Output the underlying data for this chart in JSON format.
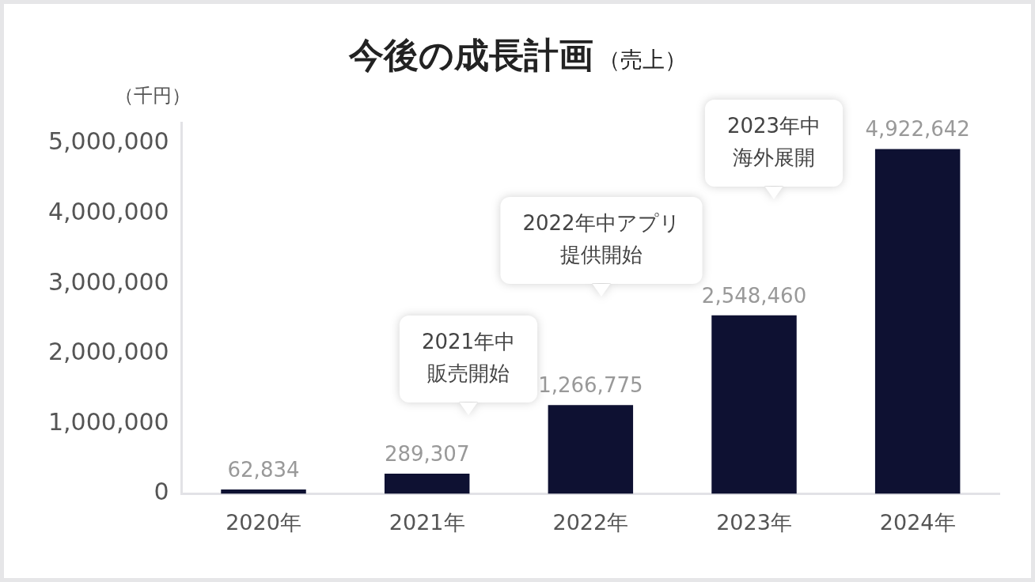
{
  "chart_data": {
    "type": "bar",
    "title": "今後の成長計画",
    "subtitle": "（売上）",
    "ylabel": "（千円）",
    "categories": [
      "2020年",
      "2021年",
      "2022年",
      "2023年",
      "2024年"
    ],
    "values": [
      62834,
      289307,
      1266775,
      2548460,
      4922642
    ],
    "color": "#0e1132",
    "value_labels": [
      "62,834",
      "289,307",
      "1,266,775",
      "2,548,460",
      "4,922,642"
    ],
    "ylim": [
      0,
      5300000
    ],
    "yticks": [
      0,
      {
        "value": 1000000,
        "label": "1,000,000"
      },
      {
        "value": 2000000,
        "label": "2,000,000"
      },
      {
        "value": 3000000,
        "label": "3,000,000"
      },
      {
        "value": 4000000,
        "label": "4,000,000"
      },
      {
        "value": 5000000,
        "label": "5,000,000"
      }
    ],
    "grid": false,
    "legend": false,
    "annotations": [
      "2021年中販売開始",
      "2022年中アプリ提供開始",
      "2023年中海外展開"
    ]
  }
}
